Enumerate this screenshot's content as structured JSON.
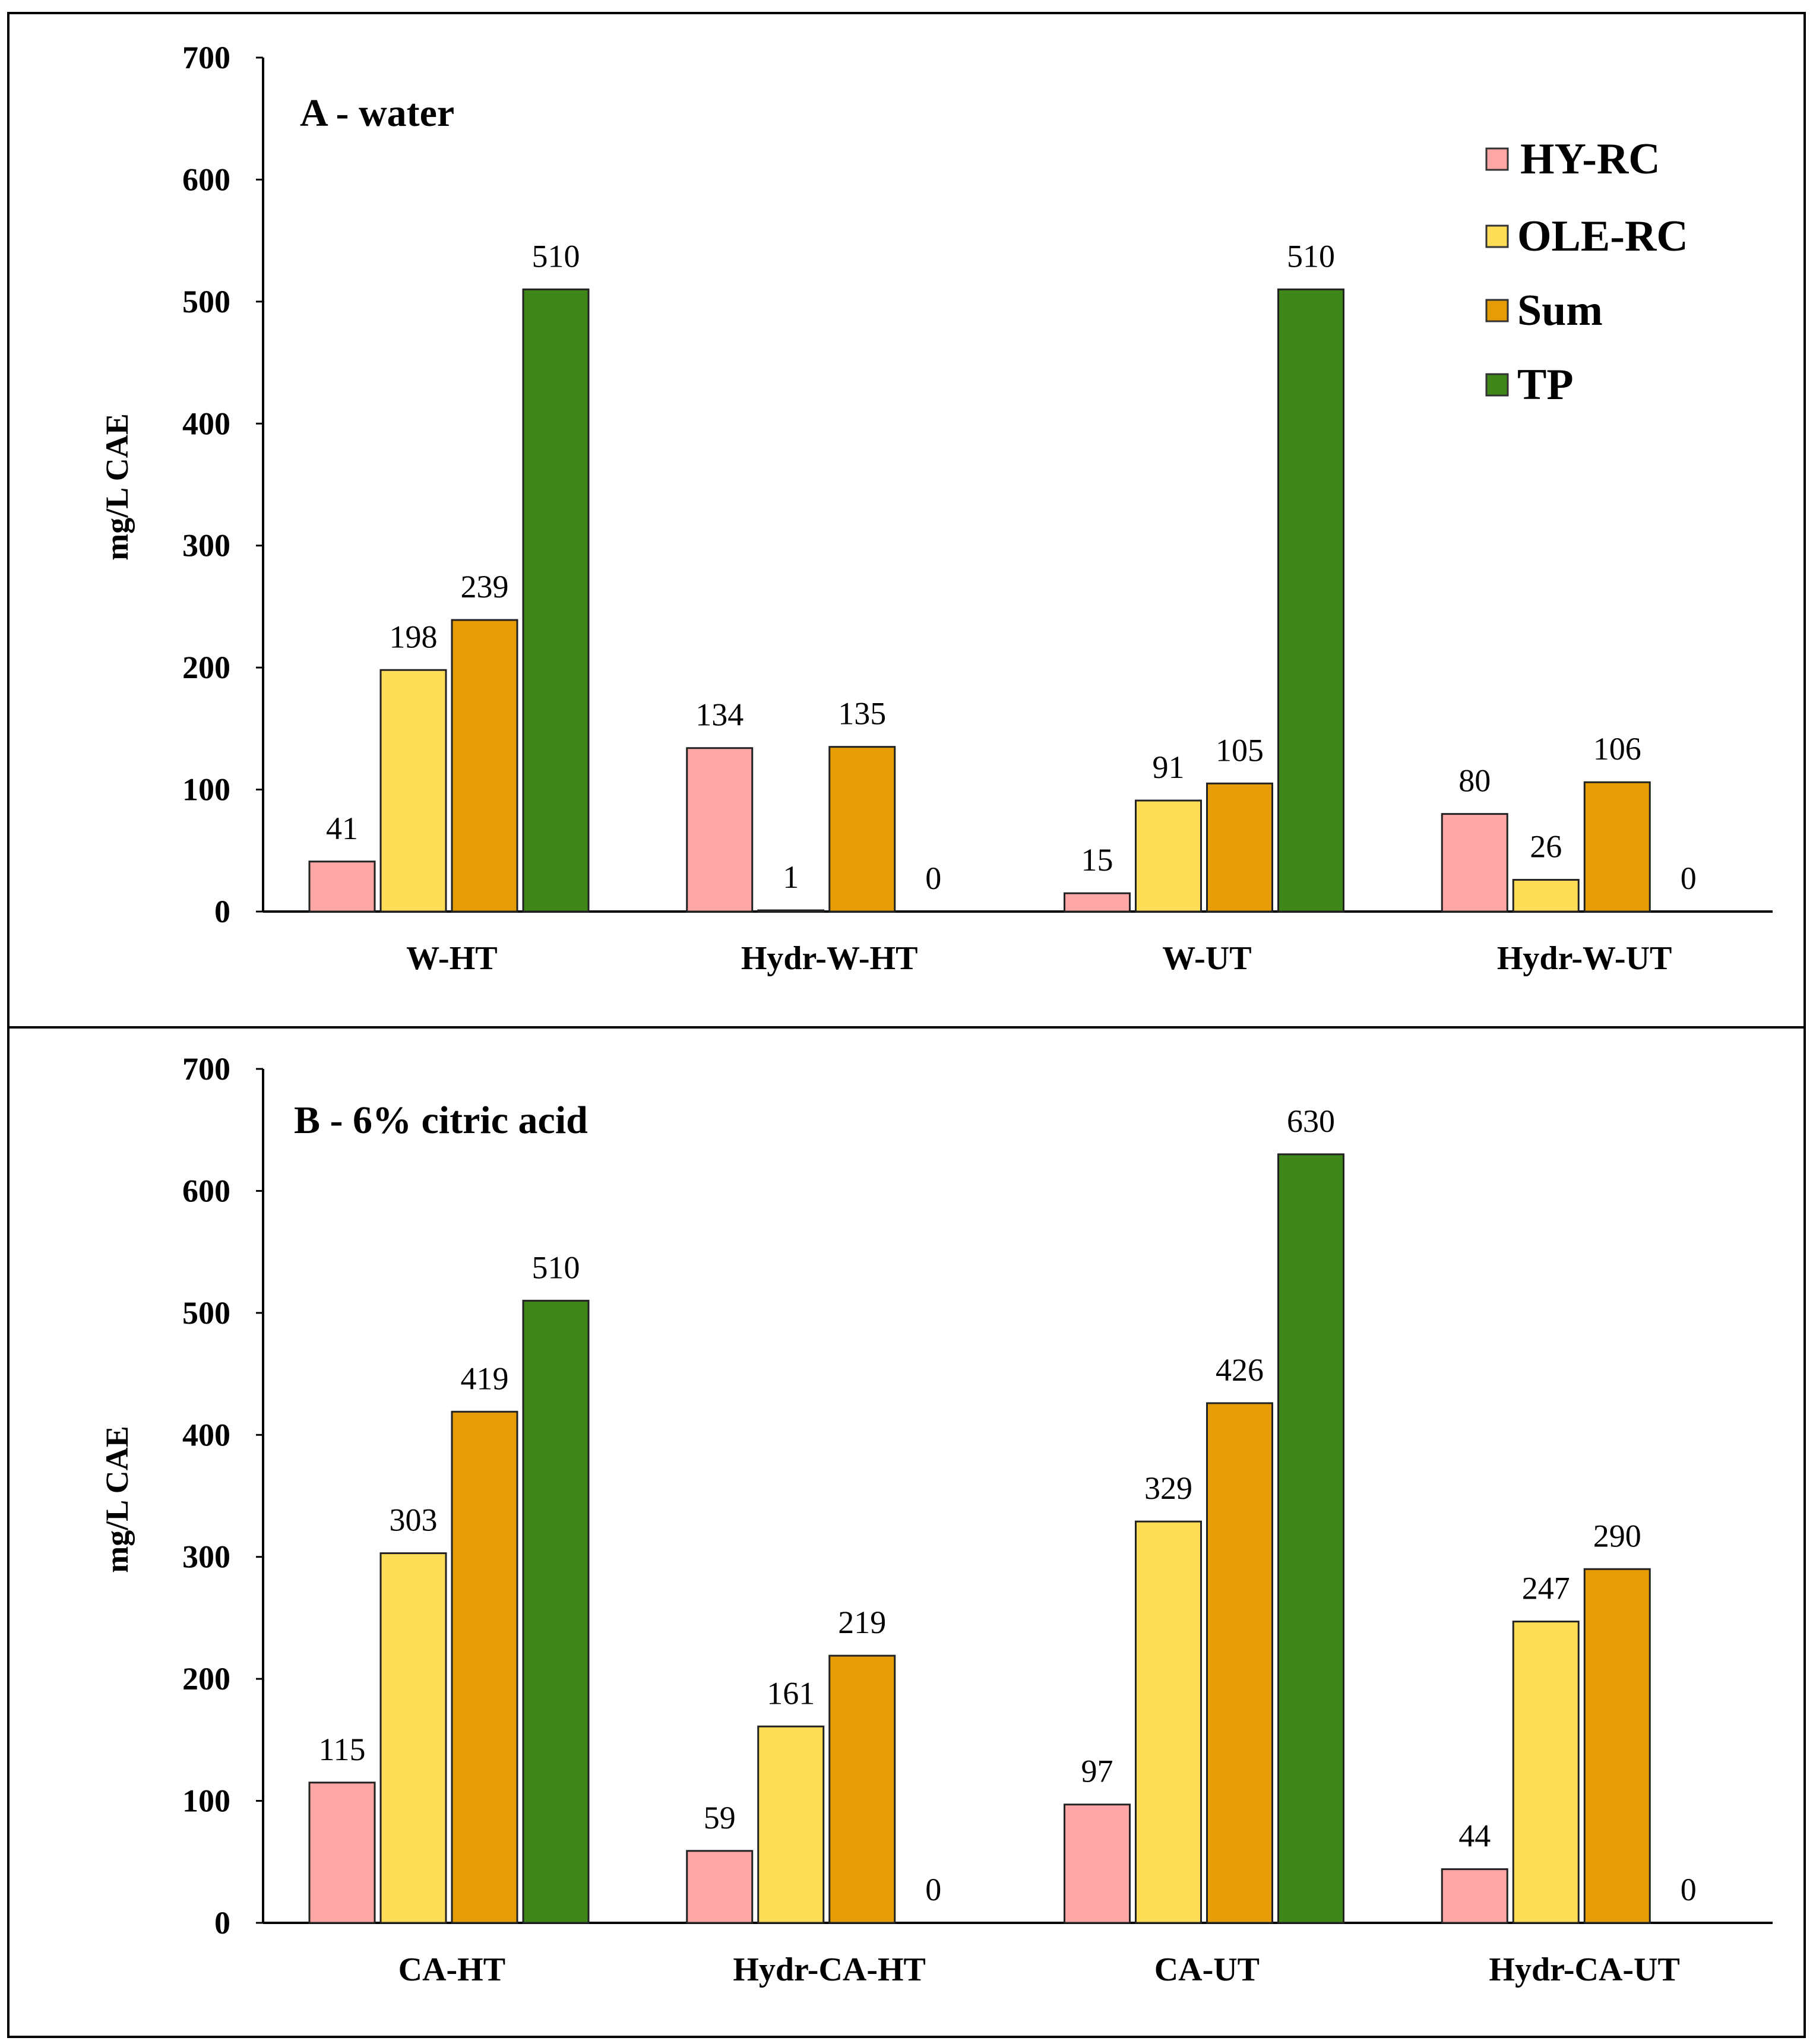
{
  "chart_data": [
    {
      "type": "bar",
      "title": "A - water",
      "ylabel": "mg/L  CAE",
      "xlabel": "",
      "ylim": [
        0,
        700
      ],
      "yticks": [
        0,
        100,
        200,
        300,
        400,
        500,
        600,
        700
      ],
      "categories": [
        "W-HT",
        "Hydr-W-HT",
        "W-UT",
        "Hydr-W-UT"
      ],
      "series": [
        {
          "name": "HY-RC",
          "color": "#ffa6a6",
          "values": [
            41,
            134,
            15,
            80
          ],
          "labels": [
            "41",
            "134",
            "15",
            "80"
          ]
        },
        {
          "name": "OLE-RC",
          "color": "#ffdd57",
          "values": [
            198,
            1,
            91,
            26
          ],
          "labels": [
            "198",
            "1",
            "91",
            "26"
          ]
        },
        {
          "name": "Sum",
          "color": "#e69d05",
          "values": [
            239,
            135,
            105,
            106
          ],
          "labels": [
            "239",
            "135",
            "105",
            "106"
          ]
        },
        {
          "name": "TP",
          "color": "#3f871b",
          "values": [
            510,
            0,
            510,
            0
          ],
          "labels": [
            "510",
            "0",
            "510",
            "0"
          ]
        }
      ],
      "legend": "top-right"
    },
    {
      "type": "bar",
      "title": "B - 6% citric  acid",
      "ylabel": "mg/L  CAE",
      "xlabel": "",
      "ylim": [
        0,
        700
      ],
      "yticks": [
        0,
        100,
        200,
        300,
        400,
        500,
        600,
        700
      ],
      "categories": [
        "CA-HT",
        "Hydr-CA-HT",
        "CA-UT",
        "Hydr-CA-UT"
      ],
      "series": [
        {
          "name": "HY-RC",
          "color": "#ffa6a6",
          "values": [
            115,
            59,
            97,
            44
          ],
          "labels": [
            "115",
            "59",
            "97",
            "44"
          ]
        },
        {
          "name": "OLE-RC",
          "color": "#ffdd57",
          "values": [
            303,
            161,
            329,
            247
          ],
          "labels": [
            "303",
            "161",
            "329",
            "247"
          ]
        },
        {
          "name": "Sum",
          "color": "#e69d05",
          "values": [
            419,
            219,
            426,
            290
          ],
          "labels": [
            "419",
            "219",
            "426",
            "290"
          ]
        },
        {
          "name": "TP",
          "color": "#3f871b",
          "values": [
            510,
            0,
            630,
            0
          ],
          "labels": [
            "510",
            "0",
            "630",
            "0"
          ]
        }
      ],
      "legend": "none"
    }
  ]
}
